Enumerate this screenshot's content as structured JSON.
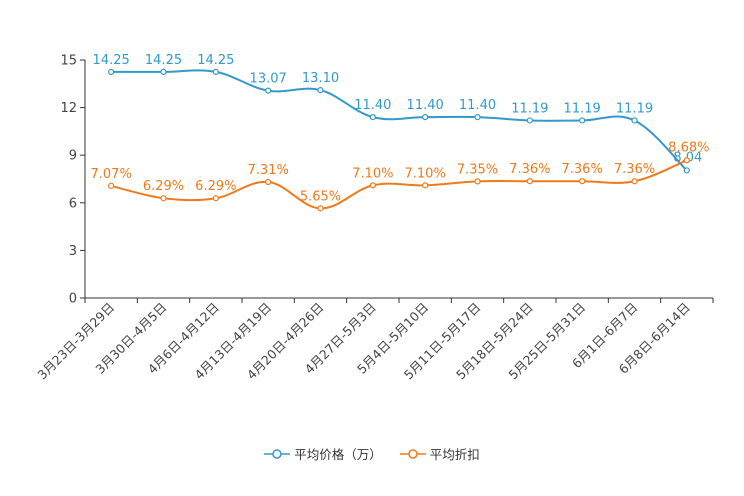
{
  "chart_data": {
    "type": "line",
    "categories": [
      "3月23日-3月29日",
      "3月30日-4月5日",
      "4月6日-4月12日",
      "4月13日-4月19日",
      "4月20日-4月26日",
      "4月27日-5月3日",
      "5月4日-5月10日",
      "5月11日-5月17日",
      "5月18日-5月24日",
      "5月25日-5月31日",
      "6月1日-6月7日",
      "6月8日-6月14日"
    ],
    "ylim": [
      0,
      15
    ],
    "yticks": [
      0,
      3,
      6,
      9,
      12,
      15
    ],
    "series": [
      {
        "name": "平均价格（万）",
        "color": "#3399cc",
        "values": [
          14.25,
          14.25,
          14.25,
          13.07,
          13.1,
          11.4,
          11.4,
          11.4,
          11.19,
          11.19,
          11.19,
          8.04
        ],
        "labels": [
          "14.25",
          "14.25",
          "14.25",
          "13.07",
          "13.10",
          "11.40",
          "11.40",
          "11.40",
          "11.19",
          "11.19",
          "11.19",
          "8.04"
        ]
      },
      {
        "name": "平均折扣",
        "color": "#f07a1a",
        "values": [
          7.07,
          6.29,
          6.29,
          7.31,
          5.65,
          7.1,
          7.1,
          7.35,
          7.36,
          7.36,
          7.36,
          8.68
        ],
        "labels": [
          "7.07%",
          "6.29%",
          "6.29%",
          "7.31%",
          "5.65%",
          "7.10%",
          "7.10%",
          "7.35%",
          "7.36%",
          "7.36%",
          "7.36%",
          "8.68%"
        ]
      }
    ]
  }
}
